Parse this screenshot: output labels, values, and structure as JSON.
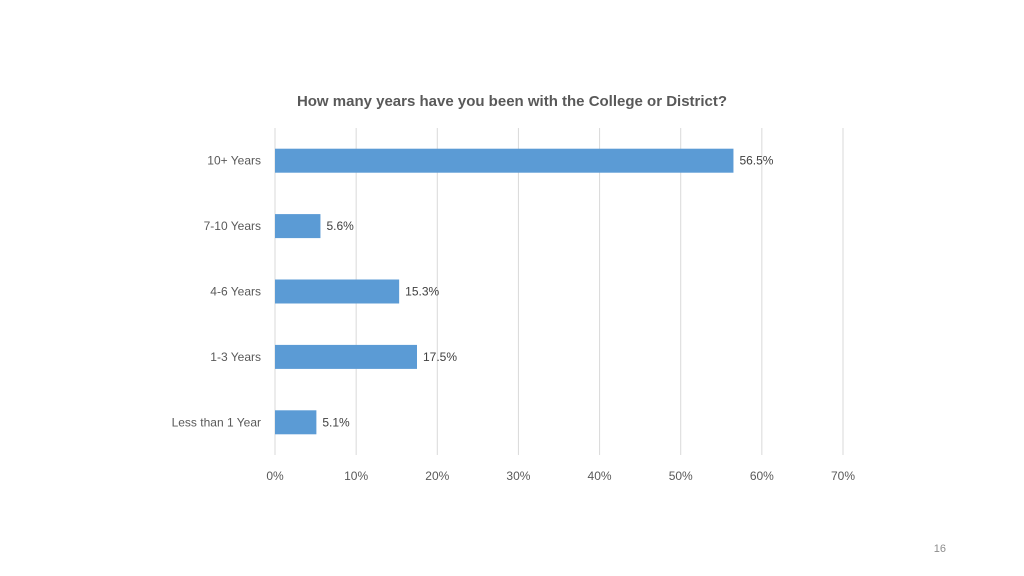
{
  "page": {
    "number": "16"
  },
  "chart_data": {
    "type": "bar",
    "orientation": "horizontal",
    "title": "How many years have you been with the College or District?",
    "categories": [
      "10+ Years",
      "7-10 Years",
      "4-6 Years",
      "1-3 Years",
      "Less than 1 Year"
    ],
    "values": [
      56.5,
      5.6,
      15.3,
      17.5,
      5.1
    ],
    "data_labels": [
      "56.5%",
      "5.6%",
      "15.3%",
      "17.5%",
      "5.1%"
    ],
    "xlim": [
      0,
      70
    ],
    "x_ticks": [
      "0%",
      "10%",
      "20%",
      "30%",
      "40%",
      "50%",
      "60%",
      "70%"
    ],
    "grid": true,
    "legend": "none",
    "bar_color": "#5b9bd5",
    "grid_color": "#d9d9d9"
  }
}
